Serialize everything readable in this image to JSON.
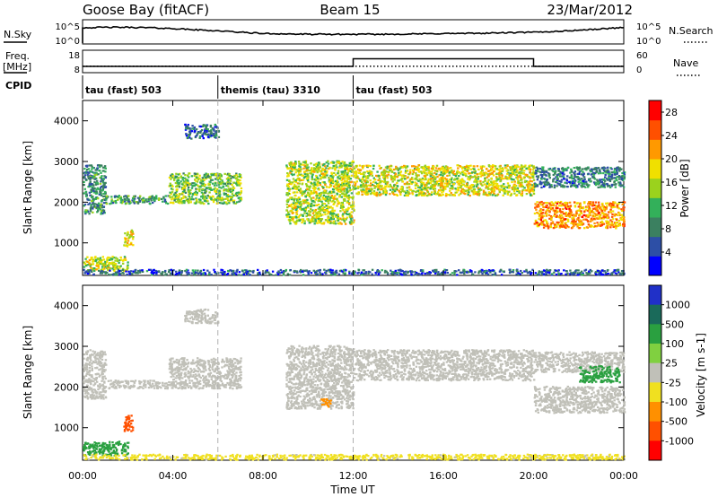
{
  "header": {
    "site": "Goose Bay (fitACF)",
    "beam": "Beam 15",
    "date": "23/Mar/2012"
  },
  "strip_labels": {
    "nsky": "N.Sky",
    "nsearch": "N.Search",
    "freq_line1": "Freq.",
    "freq_line2": "[MHz]",
    "nave": "Nave",
    "cpid": "CPID"
  },
  "cpid_segments": [
    {
      "label": "tau (fast) 503",
      "start": 0,
      "end": 6
    },
    {
      "label": "themis (tau) 3310",
      "start": 6,
      "end": 12
    },
    {
      "label": "tau (fast) 503",
      "start": 12,
      "end": 24
    }
  ],
  "colors": {
    "power": [
      "#0000ff",
      "#2d4fa6",
      "#3b8060",
      "#33b05a",
      "#9bd21d",
      "#f0e000",
      "#ff9900",
      "#ff5000",
      "#ff0000"
    ],
    "velocity": [
      "#2030c8",
      "#1a6a5a",
      "#2aa040",
      "#80d040",
      "#c0c0b8",
      "#f0e020",
      "#ff9000",
      "#ff5000",
      "#ff0000"
    ],
    "ground_scatter": "#c0c0b8"
  },
  "chart_data": [
    {
      "type": "line",
      "name": "noise-strip",
      "x_range": [
        0,
        24
      ],
      "left_ticks": [
        "10^5",
        "10^0"
      ],
      "right_ticks": [
        "10^5",
        "10^0"
      ],
      "series": [
        {
          "name": "N.Sky",
          "style": "solid",
          "x": [
            0,
            1,
            2,
            3,
            4,
            5,
            6,
            7,
            8,
            9,
            10,
            11,
            12,
            13,
            14,
            15,
            16,
            17,
            18,
            19,
            20,
            21,
            22,
            23,
            24
          ],
          "y": [
            0.7,
            0.72,
            0.72,
            0.7,
            0.66,
            0.6,
            0.55,
            0.48,
            0.42,
            0.4,
            0.38,
            0.38,
            0.38,
            0.38,
            0.39,
            0.4,
            0.42,
            0.42,
            0.44,
            0.46,
            0.48,
            0.52,
            0.58,
            0.64,
            0.72
          ]
        }
      ]
    },
    {
      "type": "line",
      "name": "freq-nave-strip",
      "x_range": [
        0,
        24
      ],
      "left_ticks": [
        "18",
        "8"
      ],
      "right_ticks": [
        "60",
        "0"
      ],
      "series": [
        {
          "name": "Freq. [MHz]",
          "style": "solid",
          "x": [
            0,
            12,
            12,
            20,
            20,
            24
          ],
          "y": [
            10.6,
            10.6,
            14.3,
            14.3,
            10.6,
            10.6
          ]
        },
        {
          "name": "Nave",
          "style": "dotted",
          "x": [
            0,
            24
          ],
          "y": [
            16,
            16
          ]
        }
      ]
    },
    {
      "type": "heatmap",
      "name": "power",
      "xlabel": "",
      "ylabel": "Slant Range [km]",
      "x_ticks": [
        "00:00",
        "04:00",
        "08:00",
        "12:00",
        "16:00",
        "20:00",
        "00:00"
      ],
      "y_ticks": [
        "1000",
        "2000",
        "3000",
        "4000"
      ],
      "xlim": [
        0,
        24
      ],
      "ylim": [
        200,
        4500
      ],
      "colorbar_label": "Power [dB]",
      "colorbar_ticks": [
        "4",
        "8",
        "12",
        "16",
        "20",
        "24",
        "28"
      ],
      "colorbar_range": [
        0,
        30
      ],
      "scatter_regions": [
        {
          "t0": 0.0,
          "t1": 1.0,
          "r0": 1700,
          "r1": 2900,
          "p": 9,
          "g": false
        },
        {
          "t0": 1.0,
          "t1": 3.8,
          "r0": 1950,
          "r1": 2150,
          "p": 10,
          "g": false
        },
        {
          "t0": 3.8,
          "t1": 7.0,
          "r0": 1950,
          "r1": 2700,
          "p": 14,
          "g": false
        },
        {
          "t0": 4.5,
          "t1": 6.0,
          "r0": 3550,
          "r1": 3900,
          "p": 6,
          "g": false
        },
        {
          "t0": 9.0,
          "t1": 12.0,
          "r0": 1450,
          "r1": 3000,
          "p": 16,
          "g": false
        },
        {
          "t0": 12.0,
          "t1": 20.0,
          "r0": 2150,
          "r1": 2900,
          "p": 17,
          "g": false
        },
        {
          "t0": 20.0,
          "t1": 24.0,
          "r0": 1350,
          "r1": 2000,
          "p": 22,
          "g": false
        },
        {
          "t0": 20.0,
          "t1": 24.0,
          "r0": 2350,
          "r1": 2850,
          "p": 8,
          "g": false
        },
        {
          "t0": 0.0,
          "t1": 2.0,
          "r0": 300,
          "r1": 650,
          "p": 16,
          "g": false
        },
        {
          "t0": 1.8,
          "t1": 2.2,
          "r0": 900,
          "r1": 1300,
          "p": 18,
          "g": false
        },
        {
          "t0": 0.0,
          "t1": 24.0,
          "r0": 200,
          "r1": 330,
          "p": 6,
          "g": false
        }
      ]
    },
    {
      "type": "heatmap",
      "name": "velocity",
      "xlabel": "Time UT",
      "ylabel": "Slant Range [km]",
      "x_ticks": [
        "00:00",
        "04:00",
        "08:00",
        "12:00",
        "16:00",
        "20:00",
        "00:00"
      ],
      "y_ticks": [
        "1000",
        "2000",
        "3000",
        "4000"
      ],
      "xlim": [
        0,
        24
      ],
      "ylim": [
        200,
        4500
      ],
      "colorbar_label": "Velocity [m s-1]",
      "colorbar_ticks": [
        "1000",
        "500",
        "100",
        "25",
        "-25",
        "-100",
        "-500",
        "-1000"
      ],
      "scatter_regions": [
        {
          "t0": 0.0,
          "t1": 1.0,
          "r0": 1700,
          "r1": 2900,
          "v": 0,
          "g": true
        },
        {
          "t0": 1.0,
          "t1": 3.8,
          "r0": 1950,
          "r1": 2150,
          "v": 0,
          "g": true
        },
        {
          "t0": 3.8,
          "t1": 7.0,
          "r0": 1950,
          "r1": 2700,
          "v": 0,
          "g": true
        },
        {
          "t0": 4.5,
          "t1": 6.0,
          "r0": 3550,
          "r1": 3900,
          "v": 0,
          "g": true
        },
        {
          "t0": 9.0,
          "t1": 12.0,
          "r0": 1450,
          "r1": 3000,
          "v": 0,
          "g": true
        },
        {
          "t0": 12.0,
          "t1": 20.0,
          "r0": 2150,
          "r1": 2900,
          "v": 0,
          "g": true
        },
        {
          "t0": 20.0,
          "t1": 24.0,
          "r0": 1350,
          "r1": 2000,
          "v": 0,
          "g": true
        },
        {
          "t0": 20.0,
          "t1": 24.0,
          "r0": 2350,
          "r1": 2850,
          "v": 0,
          "g": true
        },
        {
          "t0": 22.0,
          "t1": 23.8,
          "r0": 2100,
          "r1": 2500,
          "v": 150,
          "g": false
        },
        {
          "t0": 0.0,
          "t1": 2.0,
          "r0": 300,
          "r1": 650,
          "v": 150,
          "g": false
        },
        {
          "t0": 1.8,
          "t1": 2.2,
          "r0": 900,
          "r1": 1300,
          "v": -800,
          "g": false
        },
        {
          "t0": 10.5,
          "t1": 11.0,
          "r0": 1500,
          "r1": 1700,
          "v": -300,
          "g": false
        },
        {
          "t0": 0.0,
          "t1": 24.0,
          "r0": 200,
          "r1": 330,
          "v": -60,
          "g": false
        }
      ]
    }
  ]
}
